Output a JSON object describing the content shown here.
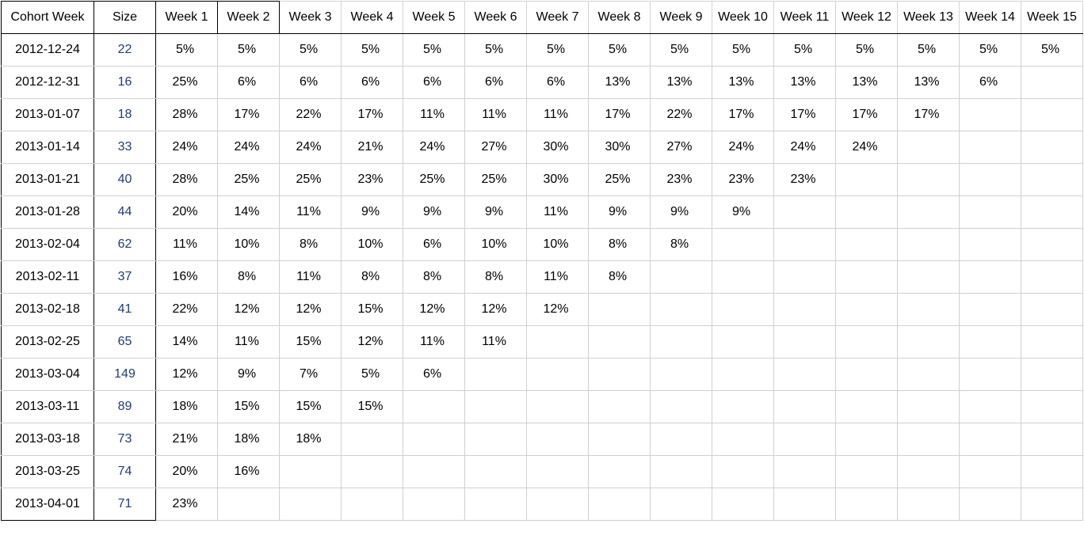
{
  "table": {
    "headers": [
      "Cohort Week",
      "Size",
      "Week 1",
      "Week 2",
      "Week 3",
      "Week 4",
      "Week 5",
      "Week 6",
      "Week 7",
      "Week 8",
      "Week 9",
      "Week 10",
      "Week 11",
      "Week 12",
      "Week 13",
      "Week 14",
      "Week 15"
    ],
    "rows": [
      {
        "cohort": "2012-12-24",
        "size": "22",
        "weeks": [
          "5%",
          "5%",
          "5%",
          "5%",
          "5%",
          "5%",
          "5%",
          "5%",
          "5%",
          "5%",
          "5%",
          "5%",
          "5%",
          "5%",
          "5%"
        ]
      },
      {
        "cohort": "2012-12-31",
        "size": "16",
        "weeks": [
          "25%",
          "6%",
          "6%",
          "6%",
          "6%",
          "6%",
          "6%",
          "13%",
          "13%",
          "13%",
          "13%",
          "13%",
          "13%",
          "6%"
        ]
      },
      {
        "cohort": "2013-01-07",
        "size": "18",
        "weeks": [
          "28%",
          "17%",
          "22%",
          "17%",
          "11%",
          "11%",
          "11%",
          "17%",
          "22%",
          "17%",
          "17%",
          "17%",
          "17%"
        ]
      },
      {
        "cohort": "2013-01-14",
        "size": "33",
        "weeks": [
          "24%",
          "24%",
          "24%",
          "21%",
          "24%",
          "27%",
          "30%",
          "30%",
          "27%",
          "24%",
          "24%",
          "24%"
        ]
      },
      {
        "cohort": "2013-01-21",
        "size": "40",
        "weeks": [
          "28%",
          "25%",
          "25%",
          "23%",
          "25%",
          "25%",
          "30%",
          "25%",
          "23%",
          "23%",
          "23%"
        ]
      },
      {
        "cohort": "2013-01-28",
        "size": "44",
        "weeks": [
          "20%",
          "14%",
          "11%",
          "9%",
          "9%",
          "9%",
          "11%",
          "9%",
          "9%",
          "9%"
        ]
      },
      {
        "cohort": "2013-02-04",
        "size": "62",
        "weeks": [
          "11%",
          "10%",
          "8%",
          "10%",
          "6%",
          "10%",
          "10%",
          "8%",
          "8%"
        ]
      },
      {
        "cohort": "2013-02-11",
        "size": "37",
        "weeks": [
          "16%",
          "8%",
          "11%",
          "8%",
          "8%",
          "8%",
          "11%",
          "8%"
        ]
      },
      {
        "cohort": "2013-02-18",
        "size": "41",
        "weeks": [
          "22%",
          "12%",
          "12%",
          "15%",
          "12%",
          "12%",
          "12%"
        ]
      },
      {
        "cohort": "2013-02-25",
        "size": "65",
        "weeks": [
          "14%",
          "11%",
          "15%",
          "12%",
          "11%",
          "11%"
        ]
      },
      {
        "cohort": "2013-03-04",
        "size": "149",
        "weeks": [
          "12%",
          "9%",
          "7%",
          "5%",
          "6%"
        ]
      },
      {
        "cohort": "2013-03-11",
        "size": "89",
        "weeks": [
          "18%",
          "15%",
          "15%",
          "15%"
        ]
      },
      {
        "cohort": "2013-03-18",
        "size": "73",
        "weeks": [
          "21%",
          "18%",
          "18%"
        ]
      },
      {
        "cohort": "2013-03-25",
        "size": "74",
        "weeks": [
          "20%",
          "16%"
        ]
      },
      {
        "cohort": "2013-04-01",
        "size": "71",
        "weeks": [
          "23%"
        ]
      }
    ]
  },
  "colors": {
    "size_text": "#1f3d7a",
    "grid_line": "#d0d0d0",
    "frame_line": "#000000"
  }
}
